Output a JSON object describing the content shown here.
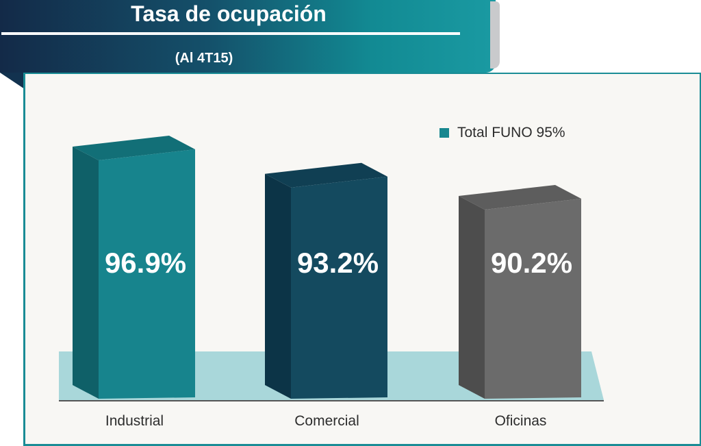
{
  "header": {
    "title": "Tasa de ocupación",
    "subtitle": "(Al 4T15)"
  },
  "legend": {
    "label": "Total FUNO 95%",
    "color": "#17878f"
  },
  "chart_data": {
    "type": "bar",
    "title": "Tasa de ocupación",
    "subtitle": "(Al 4T15)",
    "categories": [
      "Industrial",
      "Comercial",
      "Oficinas"
    ],
    "values": [
      96.9,
      93.2,
      90.2
    ],
    "value_labels": [
      "96.9%",
      "93.2%",
      "90.2%"
    ],
    "unit": "%",
    "reference_line": {
      "label": "Total FUNO 95%",
      "value": 95
    },
    "bar_colors": [
      {
        "front": "#17848d",
        "side": "#0f6068",
        "top": "#126f77"
      },
      {
        "front": "#144a5f",
        "side": "#0c3447",
        "top": "#103f53"
      },
      {
        "front": "#6b6b6b",
        "side": "#4d4d4d",
        "top": "#5d5d5d"
      }
    ],
    "floor_color": "#a9d7da",
    "legend_position": "top-right",
    "grid": false
  }
}
